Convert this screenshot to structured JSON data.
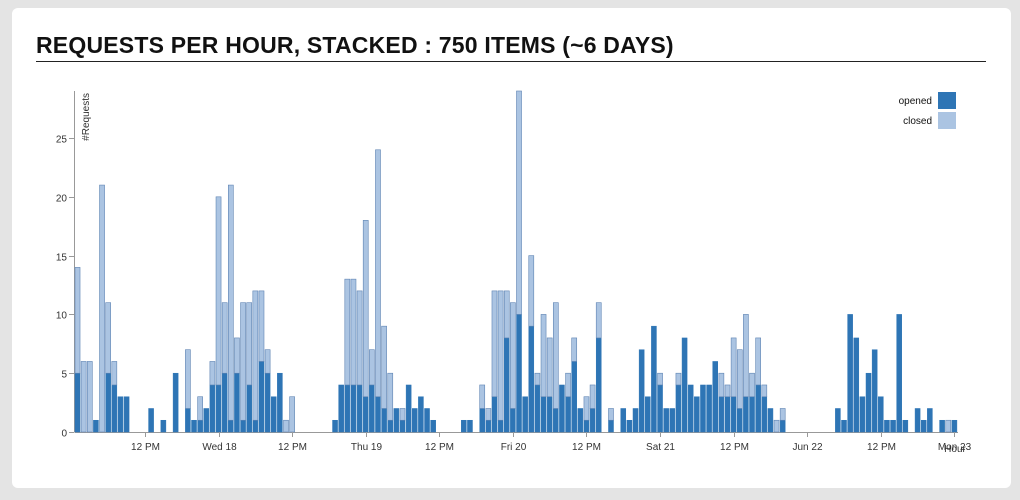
{
  "page": {
    "title": "REQUESTS PER HOUR, STACKED : 750 ITEMS (~6 DAYS)"
  },
  "chart_data": {
    "type": "bar",
    "stacked": true,
    "title": "REQUESTS PER HOUR, STACKED : 750 ITEMS (~6 DAYS)",
    "xlabel": "Hour",
    "ylabel": "#Requests",
    "ylim": [
      0,
      29
    ],
    "y_ticks": [
      0,
      5,
      10,
      15,
      20,
      25
    ],
    "x_tick_labels": [
      "12 PM",
      "Wed 18",
      "12 PM",
      "Thu 19",
      "12 PM",
      "Fri 20",
      "12 PM",
      "Sat 21",
      "12 PM",
      "Jun 22",
      "12 PM",
      "Mon 23"
    ],
    "x_tick_hours": [
      12,
      24,
      36,
      48,
      60,
      72,
      84,
      96,
      108,
      120,
      132,
      144
    ],
    "hour_count": 144,
    "first_hour": 1,
    "grid": false,
    "legend_position": "top-right",
    "colors": {
      "opened": "#2e75b5",
      "closed": "#abc4e2",
      "bar_stroke": "#5f84b3"
    },
    "series": [
      {
        "name": "opened",
        "values": [
          5,
          0,
          0,
          1,
          0,
          5,
          4,
          3,
          3,
          0,
          0,
          0,
          2,
          0,
          1,
          0,
          5,
          0,
          2,
          1,
          1,
          2,
          4,
          4,
          5,
          1,
          5,
          1,
          4,
          1,
          6,
          5,
          3,
          5,
          0,
          0,
          0,
          0,
          0,
          0,
          0,
          0,
          1,
          4,
          4,
          4,
          4,
          3,
          4,
          3,
          2,
          1,
          2,
          1,
          4,
          2,
          3,
          2,
          1,
          0,
          0,
          0,
          0,
          1,
          1,
          0,
          2,
          1,
          3,
          1,
          8,
          2,
          10,
          3,
          9,
          4,
          3,
          3,
          2,
          4,
          3,
          6,
          2,
          1,
          2,
          8,
          0,
          1,
          0,
          2,
          1,
          2,
          7,
          3,
          9,
          4,
          2,
          2,
          4,
          8,
          4,
          3,
          4,
          4,
          6,
          3,
          3,
          3,
          2,
          3,
          3,
          4,
          3,
          2,
          0,
          1,
          0,
          0,
          0,
          0,
          0,
          0,
          0,
          0,
          2,
          1,
          10,
          8,
          3,
          5,
          7,
          3,
          1,
          1,
          10,
          1,
          0,
          2,
          1,
          2,
          0,
          1,
          0,
          1
        ]
      },
      {
        "name": "closed",
        "values": [
          9,
          6,
          6,
          0,
          21,
          6,
          2,
          0,
          0,
          0,
          0,
          0,
          0,
          0,
          0,
          0,
          0,
          0,
          5,
          0,
          2,
          0,
          2,
          16,
          6,
          20,
          3,
          10,
          7,
          11,
          6,
          2,
          0,
          0,
          1,
          3,
          0,
          0,
          0,
          0,
          0,
          0,
          0,
          0,
          9,
          9,
          8,
          15,
          3,
          21,
          7,
          4,
          0,
          1,
          0,
          0,
          0,
          0,
          0,
          0,
          0,
          0,
          0,
          0,
          0,
          0,
          2,
          1,
          9,
          11,
          4,
          9,
          19,
          0,
          6,
          1,
          7,
          5,
          9,
          0,
          2,
          2,
          0,
          2,
          2,
          3,
          0,
          1,
          0,
          0,
          0,
          0,
          0,
          0,
          0,
          1,
          0,
          0,
          1,
          0,
          0,
          0,
          0,
          0,
          0,
          2,
          1,
          5,
          5,
          7,
          2,
          4,
          1,
          0,
          1,
          1,
          0,
          0,
          0,
          0,
          0,
          0,
          0,
          0,
          0,
          0,
          0,
          0,
          0,
          0,
          0,
          0,
          0,
          0,
          0,
          0,
          0,
          0,
          0,
          0,
          0,
          0,
          1,
          0
        ]
      }
    ]
  }
}
